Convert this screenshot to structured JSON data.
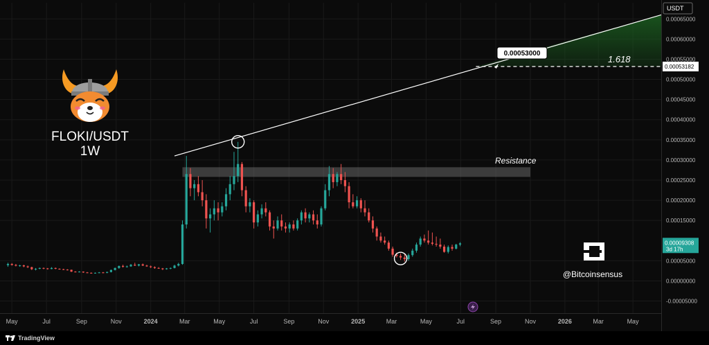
{
  "title": "FLOKI/USDT",
  "interval": "1W",
  "currency_label": "USDT",
  "resistance_label": "Resistance",
  "fib_label": "1.618",
  "target_label": "0.00053000",
  "fib_price_label": "0.00053182",
  "current_price_label": "0.00009308",
  "countdown_label": "3d 17h",
  "watermark_handle": "@Bitcoinsensus",
  "brand_name": "TradingView",
  "colors": {
    "up": "#26a69a",
    "down": "#ef5350",
    "background": "#0b0b0b",
    "trendline": "#ffffff",
    "fib_zone": "#1b5e20",
    "resistance_zone": "#666666",
    "price_badge": "#26a69a"
  },
  "chart_data": {
    "type": "candlestick",
    "x_tick_labels": [
      "May",
      "Jul",
      "Sep",
      "Nov",
      "2024",
      "Mar",
      "May",
      "Jul",
      "Sep",
      "Nov",
      "2025",
      "Mar",
      "May",
      "Jul",
      "Sep",
      "Nov",
      "2026",
      "Mar",
      "May"
    ],
    "x_tick_dates": [
      "2023-05-01",
      "2023-07-01",
      "2023-09-01",
      "2023-11-01",
      "2024-01-01",
      "2024-03-01",
      "2024-05-01",
      "2024-07-01",
      "2024-09-01",
      "2024-11-01",
      "2025-01-01",
      "2025-03-01",
      "2025-05-01",
      "2025-07-01",
      "2025-09-01",
      "2025-11-01",
      "2026-01-01",
      "2026-03-01",
      "2026-05-01"
    ],
    "y_tick_labels": [
      "0.00065000",
      "0.00060000",
      "0.00055000",
      "0.00050000",
      "0.00045000",
      "0.00040000",
      "0.00035000",
      "0.00030000",
      "0.00025000",
      "0.00020000",
      "0.00015000",
      "0.00005000",
      "0.00000000",
      "-0.00005000"
    ],
    "y_tick_values": [
      0.00065,
      0.0006,
      0.00055,
      0.0005,
      0.00045,
      0.0004,
      0.00035,
      0.0003,
      0.00025,
      0.0002,
      0.00015,
      5e-05,
      0.0,
      -5e-05
    ],
    "ylim": [
      -8e-05,
      0.00069
    ],
    "xlim": [
      "2023-04-10",
      "2026-06-20"
    ],
    "resistance_zone": [
      0.000258,
      0.000282
    ],
    "fib_level": 0.00053182,
    "target_price": 0.00053,
    "current_price": 9.308e-05,
    "trendline": {
      "start": {
        "date": "2024-02-12",
        "price": 0.00031
      },
      "end": {
        "date": "2026-06-20",
        "price": 0.00066
      }
    },
    "fib_extension_zone": {
      "from_date": "2025-07-28",
      "to_date": "2026-06-20",
      "lower": 0.00053182
    },
    "highlight_points": [
      {
        "date": "2024-06-03",
        "price": 0.000345
      },
      {
        "date": "2025-03-17",
        "price": 5.55e-05
      }
    ],
    "candles": [
      {
        "date": "2023-04-24",
        "o": 3.9e-05,
        "h": 4.5e-05,
        "l": 3.5e-05,
        "c": 4.2e-05
      },
      {
        "date": "2023-05-01",
        "o": 4.2e-05,
        "h": 4.4e-05,
        "l": 3.8e-05,
        "c": 3.95e-05
      },
      {
        "date": "2023-05-08",
        "o": 3.95e-05,
        "h": 4.2e-05,
        "l": 3.6e-05,
        "c": 3.75e-05
      },
      {
        "date": "2023-05-15",
        "o": 3.75e-05,
        "h": 4e-05,
        "l": 3.5e-05,
        "c": 3.85e-05
      },
      {
        "date": "2023-05-22",
        "o": 3.85e-05,
        "h": 4e-05,
        "l": 3.4e-05,
        "c": 3.6e-05
      },
      {
        "date": "2023-05-29",
        "o": 3.6e-05,
        "h": 3.8e-05,
        "l": 3.2e-05,
        "c": 3.4e-05
      },
      {
        "date": "2023-06-05",
        "o": 3.4e-05,
        "h": 3.5e-05,
        "l": 2.7e-05,
        "c": 2.9e-05
      },
      {
        "date": "2023-06-12",
        "o": 2.9e-05,
        "h": 3.2e-05,
        "l": 2.6e-05,
        "c": 3e-05
      },
      {
        "date": "2023-06-19",
        "o": 3e-05,
        "h": 3.3e-05,
        "l": 2.9e-05,
        "c": 3.2e-05
      },
      {
        "date": "2023-06-26",
        "o": 3.2e-05,
        "h": 3.3e-05,
        "l": 2.9e-05,
        "c": 3.1e-05
      },
      {
        "date": "2023-07-03",
        "o": 3.1e-05,
        "h": 3.2e-05,
        "l": 2.8e-05,
        "c": 2.95e-05
      },
      {
        "date": "2023-07-10",
        "o": 2.95e-05,
        "h": 3.4e-05,
        "l": 2.9e-05,
        "c": 3.2e-05
      },
      {
        "date": "2023-07-17",
        "o": 3.2e-05,
        "h": 3.3e-05,
        "l": 2.9e-05,
        "c": 3e-05
      },
      {
        "date": "2023-07-24",
        "o": 3e-05,
        "h": 3.1e-05,
        "l": 2.8e-05,
        "c": 2.9e-05
      },
      {
        "date": "2023-07-31",
        "o": 2.9e-05,
        "h": 3e-05,
        "l": 2.7e-05,
        "c": 2.8e-05
      },
      {
        "date": "2023-08-07",
        "o": 2.8e-05,
        "h": 2.9e-05,
        "l": 2.6e-05,
        "c": 2.75e-05
      },
      {
        "date": "2023-08-14",
        "o": 2.75e-05,
        "h": 2.8e-05,
        "l": 2.2e-05,
        "c": 2.3e-05
      },
      {
        "date": "2023-08-21",
        "o": 2.3e-05,
        "h": 2.4e-05,
        "l": 2.1e-05,
        "c": 2.2e-05
      },
      {
        "date": "2023-08-28",
        "o": 2.2e-05,
        "h": 2.4e-05,
        "l": 2.1e-05,
        "c": 2.3e-05
      },
      {
        "date": "2023-09-04",
        "o": 2.3e-05,
        "h": 2.35e-05,
        "l": 2e-05,
        "c": 2.1e-05
      },
      {
        "date": "2023-09-11",
        "o": 2.1e-05,
        "h": 2.2e-05,
        "l": 1.9e-05,
        "c": 2e-05
      },
      {
        "date": "2023-09-18",
        "o": 2e-05,
        "h": 2.1e-05,
        "l": 1.8e-05,
        "c": 1.9e-05
      },
      {
        "date": "2023-09-25",
        "o": 1.9e-05,
        "h": 2.1e-05,
        "l": 1.8e-05,
        "c": 2e-05
      },
      {
        "date": "2023-10-02",
        "o": 2e-05,
        "h": 2.2e-05,
        "l": 1.9e-05,
        "c": 2.1e-05
      },
      {
        "date": "2023-10-09",
        "o": 2.1e-05,
        "h": 2.2e-05,
        "l": 1.9e-05,
        "c": 2e-05
      },
      {
        "date": "2023-10-16",
        "o": 2e-05,
        "h": 2.3e-05,
        "l": 1.9e-05,
        "c": 2.2e-05
      },
      {
        "date": "2023-10-23",
        "o": 2.2e-05,
        "h": 2.8e-05,
        "l": 2.1e-05,
        "c": 2.7e-05
      },
      {
        "date": "2023-10-30",
        "o": 2.7e-05,
        "h": 3.3e-05,
        "l": 2.6e-05,
        "c": 3.2e-05
      },
      {
        "date": "2023-11-06",
        "o": 3.2e-05,
        "h": 3.8e-05,
        "l": 3e-05,
        "c": 3.7e-05
      },
      {
        "date": "2023-11-13",
        "o": 3.7e-05,
        "h": 4e-05,
        "l": 3.3e-05,
        "c": 3.5e-05
      },
      {
        "date": "2023-11-20",
        "o": 3.5e-05,
        "h": 3.8e-05,
        "l": 3.3e-05,
        "c": 3.6e-05
      },
      {
        "date": "2023-11-27",
        "o": 3.6e-05,
        "h": 4.2e-05,
        "l": 3.5e-05,
        "c": 4e-05
      },
      {
        "date": "2023-12-04",
        "o": 4e-05,
        "h": 4.5e-05,
        "l": 3.7e-05,
        "c": 3.8e-05
      },
      {
        "date": "2023-12-11",
        "o": 3.8e-05,
        "h": 4.2e-05,
        "l": 3.6e-05,
        "c": 4.1e-05
      },
      {
        "date": "2023-12-18",
        "o": 4.1e-05,
        "h": 4.3e-05,
        "l": 3.7e-05,
        "c": 3.8e-05
      },
      {
        "date": "2023-12-25",
        "o": 3.8e-05,
        "h": 4e-05,
        "l": 3.5e-05,
        "c": 3.6e-05
      },
      {
        "date": "2024-01-01",
        "o": 3.6e-05,
        "h": 3.8e-05,
        "l": 3.2e-05,
        "c": 3.4e-05
      },
      {
        "date": "2024-01-08",
        "o": 3.4e-05,
        "h": 3.6e-05,
        "l": 3e-05,
        "c": 3.2e-05
      },
      {
        "date": "2024-01-15",
        "o": 3.2e-05,
        "h": 3.4e-05,
        "l": 3e-05,
        "c": 3.1e-05
      },
      {
        "date": "2024-01-22",
        "o": 3.1e-05,
        "h": 3.2e-05,
        "l": 2.7e-05,
        "c": 2.9e-05
      },
      {
        "date": "2024-01-29",
        "o": 2.9e-05,
        "h": 3.2e-05,
        "l": 2.8e-05,
        "c": 3.1e-05
      },
      {
        "date": "2024-02-05",
        "o": 3.1e-05,
        "h": 3.3e-05,
        "l": 2.9e-05,
        "c": 3.2e-05
      },
      {
        "date": "2024-02-12",
        "o": 3.2e-05,
        "h": 4e-05,
        "l": 3.1e-05,
        "c": 3.8e-05
      },
      {
        "date": "2024-02-19",
        "o": 3.8e-05,
        "h": 4.5e-05,
        "l": 3.6e-05,
        "c": 4.2e-05
      },
      {
        "date": "2024-02-26",
        "o": 4.2e-05,
        "h": 0.00015,
        "l": 4e-05,
        "c": 0.00014
      },
      {
        "date": "2024-03-04",
        "o": 0.00014,
        "h": 0.00031,
        "l": 0.00013,
        "c": 0.000265
      },
      {
        "date": "2024-03-11",
        "o": 0.000265,
        "h": 0.00028,
        "l": 0.00021,
        "c": 0.00023
      },
      {
        "date": "2024-03-18",
        "o": 0.00023,
        "h": 0.00025,
        "l": 0.0002,
        "c": 0.00024
      },
      {
        "date": "2024-03-25",
        "o": 0.00024,
        "h": 0.00026,
        "l": 0.00021,
        "c": 0.00022
      },
      {
        "date": "2024-04-01",
        "o": 0.00022,
        "h": 0.00025,
        "l": 0.000185,
        "c": 0.0002
      },
      {
        "date": "2024-04-08",
        "o": 0.0002,
        "h": 0.000215,
        "l": 0.00013,
        "c": 0.000155
      },
      {
        "date": "2024-04-15",
        "o": 0.000155,
        "h": 0.00018,
        "l": 0.00012,
        "c": 0.000165
      },
      {
        "date": "2024-04-22",
        "o": 0.000165,
        "h": 0.0002,
        "l": 0.00015,
        "c": 0.00018
      },
      {
        "date": "2024-04-29",
        "o": 0.00018,
        "h": 0.000195,
        "l": 0.00015,
        "c": 0.00017
      },
      {
        "date": "2024-05-06",
        "o": 0.00017,
        "h": 0.000195,
        "l": 0.00016,
        "c": 0.000185
      },
      {
        "date": "2024-05-13",
        "o": 0.000185,
        "h": 0.00023,
        "l": 0.000175,
        "c": 0.000215
      },
      {
        "date": "2024-05-20",
        "o": 0.000215,
        "h": 0.00026,
        "l": 0.0002,
        "c": 0.00024
      },
      {
        "date": "2024-05-27",
        "o": 0.00024,
        "h": 0.00032,
        "l": 0.000225,
        "c": 0.00026
      },
      {
        "date": "2024-06-03",
        "o": 0.00026,
        "h": 0.000345,
        "l": 0.000245,
        "c": 0.00029
      },
      {
        "date": "2024-06-10",
        "o": 0.00029,
        "h": 0.000295,
        "l": 0.00021,
        "c": 0.000225
      },
      {
        "date": "2024-06-17",
        "o": 0.000225,
        "h": 0.000235,
        "l": 0.00017,
        "c": 0.000185
      },
      {
        "date": "2024-06-24",
        "o": 0.000185,
        "h": 0.000205,
        "l": 0.00017,
        "c": 0.000195
      },
      {
        "date": "2024-07-01",
        "o": 0.000195,
        "h": 0.0002,
        "l": 0.00013,
        "c": 0.000145
      },
      {
        "date": "2024-07-08",
        "o": 0.000145,
        "h": 0.000175,
        "l": 0.000135,
        "c": 0.000165
      },
      {
        "date": "2024-07-15",
        "o": 0.000165,
        "h": 0.00019,
        "l": 0.000155,
        "c": 0.00018
      },
      {
        "date": "2024-07-22",
        "o": 0.00018,
        "h": 0.000195,
        "l": 0.00016,
        "c": 0.00017
      },
      {
        "date": "2024-07-29",
        "o": 0.00017,
        "h": 0.000175,
        "l": 0.000125,
        "c": 0.000135
      },
      {
        "date": "2024-08-05",
        "o": 0.000135,
        "h": 0.00015,
        "l": 0.000105,
        "c": 0.00013
      },
      {
        "date": "2024-08-12",
        "o": 0.00013,
        "h": 0.00016,
        "l": 0.000125,
        "c": 0.00015
      },
      {
        "date": "2024-08-19",
        "o": 0.00015,
        "h": 0.000165,
        "l": 0.000125,
        "c": 0.000135
      },
      {
        "date": "2024-08-26",
        "o": 0.000135,
        "h": 0.000145,
        "l": 0.00012,
        "c": 0.00013
      },
      {
        "date": "2024-09-02",
        "o": 0.00013,
        "h": 0.000145,
        "l": 0.00012,
        "c": 0.00014
      },
      {
        "date": "2024-09-09",
        "o": 0.00014,
        "h": 0.00015,
        "l": 0.000125,
        "c": 0.00013
      },
      {
        "date": "2024-09-16",
        "o": 0.00013,
        "h": 0.000155,
        "l": 0.000125,
        "c": 0.00015
      },
      {
        "date": "2024-09-23",
        "o": 0.00015,
        "h": 0.000175,
        "l": 0.00014,
        "c": 0.00017
      },
      {
        "date": "2024-09-30",
        "o": 0.00017,
        "h": 0.00018,
        "l": 0.000145,
        "c": 0.000155
      },
      {
        "date": "2024-10-07",
        "o": 0.000155,
        "h": 0.00017,
        "l": 0.000145,
        "c": 0.000165
      },
      {
        "date": "2024-10-14",
        "o": 0.000165,
        "h": 0.000175,
        "l": 0.00014,
        "c": 0.00015
      },
      {
        "date": "2024-10-21",
        "o": 0.00015,
        "h": 0.000165,
        "l": 0.00013,
        "c": 0.00014
      },
      {
        "date": "2024-10-28",
        "o": 0.00014,
        "h": 0.000185,
        "l": 0.000135,
        "c": 0.00018
      },
      {
        "date": "2024-11-04",
        "o": 0.00018,
        "h": 0.00024,
        "l": 0.000175,
        "c": 0.000225
      },
      {
        "date": "2024-11-11",
        "o": 0.000225,
        "h": 0.000285,
        "l": 0.00021,
        "c": 0.000265
      },
      {
        "date": "2024-11-18",
        "o": 0.000265,
        "h": 0.00028,
        "l": 0.00023,
        "c": 0.000245
      },
      {
        "date": "2024-11-25",
        "o": 0.000245,
        "h": 0.00027,
        "l": 0.000235,
        "c": 0.000265
      },
      {
        "date": "2024-12-02",
        "o": 0.000265,
        "h": 0.00029,
        "l": 0.00024,
        "c": 0.00025
      },
      {
        "date": "2024-12-09",
        "o": 0.00025,
        "h": 0.00027,
        "l": 0.00022,
        "c": 0.000235
      },
      {
        "date": "2024-12-16",
        "o": 0.000235,
        "h": 0.000245,
        "l": 0.00018,
        "c": 0.000195
      },
      {
        "date": "2024-12-23",
        "o": 0.000195,
        "h": 0.000215,
        "l": 0.00018,
        "c": 0.000185
      },
      {
        "date": "2024-12-30",
        "o": 0.000185,
        "h": 0.00021,
        "l": 0.00018,
        "c": 0.0002
      },
      {
        "date": "2025-01-06",
        "o": 0.0002,
        "h": 0.000205,
        "l": 0.00017,
        "c": 0.00018
      },
      {
        "date": "2025-01-13",
        "o": 0.00018,
        "h": 0.0002,
        "l": 0.00016,
        "c": 0.00017
      },
      {
        "date": "2025-01-20",
        "o": 0.00017,
        "h": 0.00018,
        "l": 0.000145,
        "c": 0.00015
      },
      {
        "date": "2025-01-27",
        "o": 0.00015,
        "h": 0.00016,
        "l": 0.00012,
        "c": 0.00013
      },
      {
        "date": "2025-02-03",
        "o": 0.00013,
        "h": 0.000135,
        "l": 0.0001,
        "c": 0.00011
      },
      {
        "date": "2025-02-10",
        "o": 0.00011,
        "h": 0.00012,
        "l": 9.5e-05,
        "c": 0.0001
      },
      {
        "date": "2025-02-17",
        "o": 0.0001,
        "h": 0.00011,
        "l": 9e-05,
        "c": 9.5e-05
      },
      {
        "date": "2025-02-24",
        "o": 9.5e-05,
        "h": 0.0001,
        "l": 7.5e-05,
        "c": 8e-05
      },
      {
        "date": "2025-03-03",
        "o": 8e-05,
        "h": 8.5e-05,
        "l": 6e-05,
        "c": 6.5e-05
      },
      {
        "date": "2025-03-10",
        "o": 6.5e-05,
        "h": 7e-05,
        "l": 5.8e-05,
        "c": 6.2e-05
      },
      {
        "date": "2025-03-17",
        "o": 6.2e-05,
        "h": 6.8e-05,
        "l": 5.2e-05,
        "c": 5.8e-05
      },
      {
        "date": "2025-03-24",
        "o": 5.8e-05,
        "h": 6.6e-05,
        "l": 4.8e-05,
        "c": 5.4e-05
      },
      {
        "date": "2025-03-31",
        "o": 5.4e-05,
        "h": 6.8e-05,
        "l": 5e-05,
        "c": 6.4e-05
      },
      {
        "date": "2025-04-07",
        "o": 6.4e-05,
        "h": 8e-05,
        "l": 6e-05,
        "c": 7.5e-05
      },
      {
        "date": "2025-04-14",
        "o": 7.5e-05,
        "h": 9.5e-05,
        "l": 7e-05,
        "c": 9e-05
      },
      {
        "date": "2025-04-21",
        "o": 9e-05,
        "h": 0.00011,
        "l": 8.5e-05,
        "c": 0.000105
      },
      {
        "date": "2025-04-28",
        "o": 0.000105,
        "h": 0.000115,
        "l": 9.5e-05,
        "c": 0.0001
      },
      {
        "date": "2025-05-05",
        "o": 0.0001,
        "h": 0.000125,
        "l": 9e-05,
        "c": 9.5e-05
      },
      {
        "date": "2025-05-12",
        "o": 9.5e-05,
        "h": 0.00012,
        "l": 8.8e-05,
        "c": 9.2e-05
      },
      {
        "date": "2025-05-19",
        "o": 9.2e-05,
        "h": 0.00011,
        "l": 8.5e-05,
        "c": 9e-05
      },
      {
        "date": "2025-05-26",
        "o": 9e-05,
        "h": 0.000105,
        "l": 8e-05,
        "c": 8.5e-05
      },
      {
        "date": "2025-06-02",
        "o": 8.5e-05,
        "h": 9e-05,
        "l": 7e-05,
        "c": 7.2e-05
      },
      {
        "date": "2025-06-09",
        "o": 7.2e-05,
        "h": 8.8e-05,
        "l": 6.8e-05,
        "c": 8.4e-05
      },
      {
        "date": "2025-06-16",
        "o": 8.4e-05,
        "h": 9e-05,
        "l": 7.5e-05,
        "c": 8e-05
      },
      {
        "date": "2025-06-23",
        "o": 8e-05,
        "h": 9.2e-05,
        "l": 7.8e-05,
        "c": 9e-05
      },
      {
        "date": "2025-06-30",
        "o": 9e-05,
        "h": 9.6e-05,
        "l": 8.6e-05,
        "c": 9.308e-05
      }
    ]
  }
}
